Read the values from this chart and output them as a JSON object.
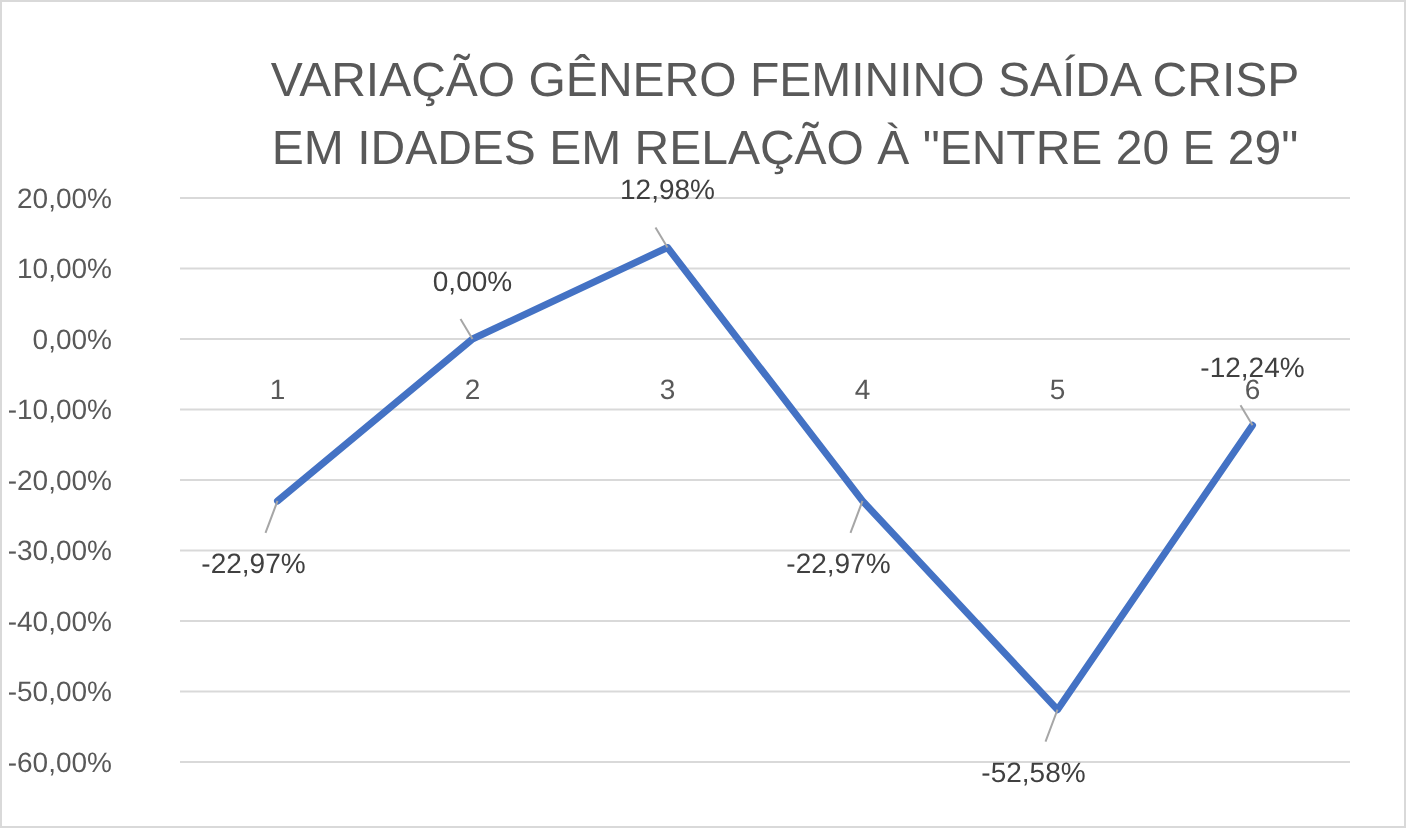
{
  "chart_data": {
    "type": "line",
    "title": "VARIAÇÃO GÊNERO FEMININO SAÍDA CRISP\nEM  IDADES EM RELAÇÃO À \"ENTRE 20 E 29\"",
    "categories": [
      "1",
      "2",
      "3",
      "4",
      "5",
      "6"
    ],
    "series": [
      {
        "color": "#4472c4",
        "values": [
          -22.97,
          0,
          12.98,
          -22.97,
          -52.58,
          -12.24
        ],
        "value_labels": [
          "-22,97%",
          "0,00%",
          "12,98%",
          "-22,97%",
          "-52,58%",
          "-12,24%"
        ]
      }
    ],
    "ylim": [
      -60,
      20
    ],
    "yticks": [
      {
        "value": 20,
        "label": "20,00%"
      },
      {
        "value": 10,
        "label": "10,00%"
      },
      {
        "value": 0,
        "label": "0,00%"
      },
      {
        "value": -10,
        "label": "-10,00%"
      },
      {
        "value": -20,
        "label": "-20,00%"
      },
      {
        "value": -30,
        "label": "-30,00%"
      },
      {
        "value": -40,
        "label": "-40,00%"
      },
      {
        "value": -50,
        "label": "-50,00%"
      },
      {
        "value": -60,
        "label": "-60,00%"
      }
    ],
    "grid": "y",
    "marker": "none",
    "line_style": "solid"
  }
}
